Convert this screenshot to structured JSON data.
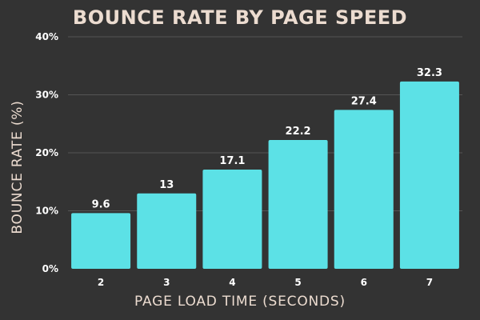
{
  "chart_data": {
    "type": "bar",
    "title": "BOUNCE RATE BY PAGE SPEED",
    "xlabel": "PAGE LOAD TIME (SECONDS)",
    "ylabel": "BOUNCE RATE (%)",
    "categories": [
      "2",
      "3",
      "4",
      "5",
      "6",
      "7"
    ],
    "values": [
      9.6,
      13,
      17.1,
      22.2,
      27.4,
      32.3
    ],
    "data_labels": [
      "9.6",
      "13",
      "17.1",
      "22.2",
      "27.4",
      "32.3"
    ],
    "ylim": [
      0,
      40
    ],
    "yticks": [
      0,
      10,
      20,
      30,
      40
    ],
    "ytick_labels": [
      "0%",
      "10%",
      "20%",
      "30%",
      "40%"
    ],
    "grid": true,
    "legend": "none",
    "colors": {
      "background": "#333333",
      "bar": "#5ce1e6",
      "grid": "#555555",
      "title": "#ecdcd0",
      "text": "#ffffff"
    }
  }
}
